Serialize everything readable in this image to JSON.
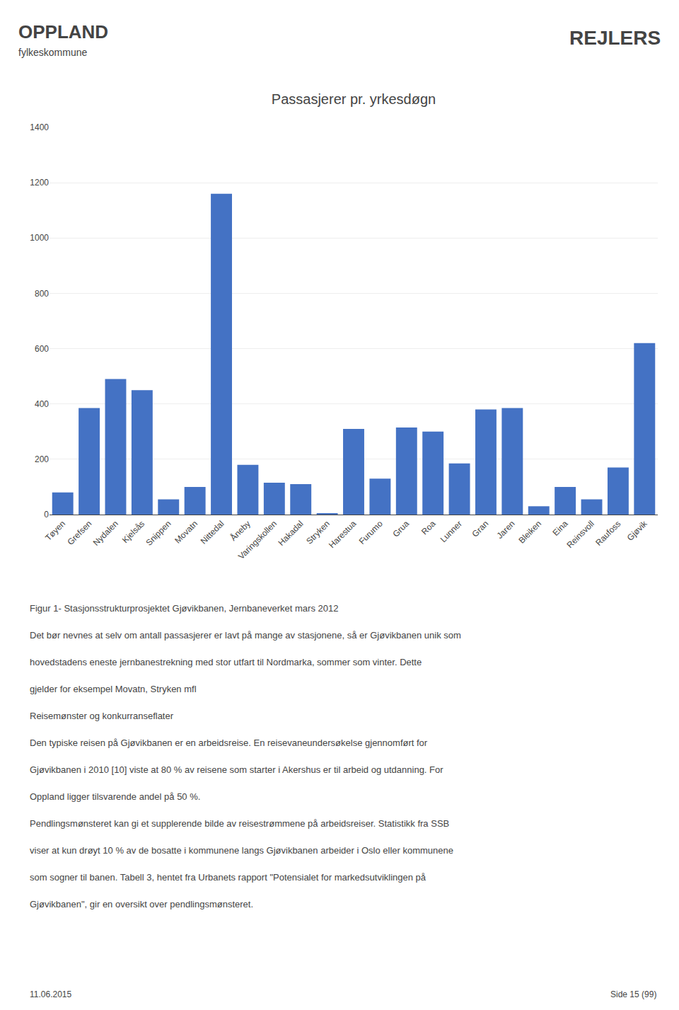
{
  "chart_data": {
    "type": "bar",
    "title": "Passasjerer pr. yrkesdøgn",
    "categories": [
      "Tøyen",
      "Grefsen",
      "Nydalen",
      "Kjelsås",
      "Snippen",
      "Movatn",
      "Nittedal",
      "Åneby",
      "Varingskollen",
      "Hakadal",
      "Stryken",
      "Harestua",
      "Furumo",
      "Grua",
      "Roa",
      "Lunner",
      "Gran",
      "Jaren",
      "Bleiken",
      "Eina",
      "Reinsvoll",
      "Raufoss",
      "Gjøvik"
    ],
    "values": [
      80,
      385,
      490,
      450,
      55,
      100,
      1160,
      180,
      115,
      110,
      5,
      310,
      130,
      315,
      300,
      185,
      380,
      385,
      30,
      100,
      55,
      170,
      620
    ],
    "color": "#4472C4",
    "ylim": [
      0,
      1400
    ],
    "yticks": [
      0,
      200,
      400,
      600,
      800,
      1000,
      1200,
      1400
    ],
    "grid": true,
    "annotations": [
      "OPPLAND",
      "fylkeskommune",
      "REJLERS",
      "Figur 1- Stasjonsstrukturprosjektet Gjøvikbanen, Jernbaneverket mars 2012",
      "Det bør nevnes at selv om antall passasjerer er lavt på mange av stasjonene, så er Gjøvikbanen unik som",
      "hovedstadens eneste jernbanestrekning med stor utfart til Nordmarka, sommer som vinter. Dette",
      "gjelder for eksempel Movatn, Stryken mfl",
      "Reisemønster og konkurranseflater",
      "Den typiske reisen på Gjøvikbanen er en arbeidsreise. En reisevaneundersøkelse gjennomført for",
      "Gjøvikbanen i 2010 [10] viste at 80 % av reisene som starter i Akershus er til arbeid og utdanning. For",
      "Oppland ligger tilsvarende andel på 50 %.",
      "Pendlingsmønsteret kan gi et supplerende bilde av reisestrømmene på arbeidsreiser. Statistikk fra SSB",
      "viser at kun drøyt 10 % av de bosatte i kommunene langs Gjøvikbanen arbeider i Oslo eller kommunene",
      "som sogner til banen. Tabell 3, hentet fra Urbanets rapport \"Potensialet for markedsutviklingen på",
      "Gjøvikbanen\", gir en oversikt over pendlingsmønsteret.",
      "11.06.2015",
      "Side 15 (99)"
    ]
  }
}
